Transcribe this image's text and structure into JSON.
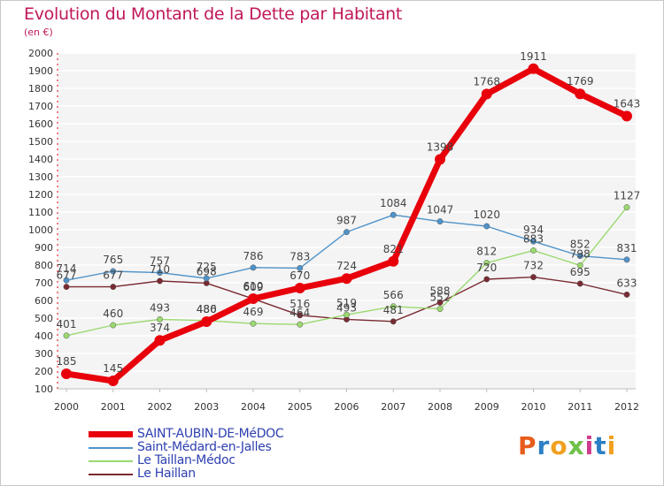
{
  "chart_data": {
    "type": "line",
    "title": "Evolution du Montant de la Dette par Habitant",
    "subtitle": "(en €)",
    "x": [
      "2000",
      "2001",
      "2002",
      "2003",
      "2004",
      "2005",
      "2006",
      "2007",
      "2008",
      "2009",
      "2010",
      "2011",
      "2012"
    ],
    "ylim": [
      100,
      2000
    ],
    "yticks": [
      100,
      200,
      300,
      400,
      500,
      600,
      700,
      800,
      900,
      1000,
      1100,
      1200,
      1300,
      1400,
      1500,
      1600,
      1700,
      1800,
      1900,
      2000
    ],
    "grid": "horizontal",
    "legend_placement": "bottom-left",
    "series": [
      {
        "name": "SAINT-AUBIN-DE-MéDOC",
        "color": "#e8000b",
        "values": [
          185,
          145,
          374,
          480,
          610,
          670,
          724,
          821,
          1398,
          1768,
          1911,
          1769,
          1643
        ]
      },
      {
        "name": "Saint-Médard-en-Jalles",
        "color": "#4f93c9",
        "values": [
          714,
          765,
          757,
          725,
          786,
          783,
          987,
          1084,
          1047,
          1020,
          934,
          852,
          831
        ]
      },
      {
        "name": "Le Taillan-Médoc",
        "color": "#9bd970",
        "values": [
          401,
          460,
          493,
          486,
          469,
          464,
          519,
          566,
          552,
          812,
          883,
          798,
          1127
        ]
      },
      {
        "name": "Le Haillan",
        "color": "#7a2a32",
        "values": [
          677,
          677,
          710,
          698,
          609,
          516,
          493,
          481,
          588,
          720,
          732,
          695,
          633
        ]
      }
    ]
  },
  "logo": {
    "letters": [
      "P",
      "r",
      "o",
      "x",
      "i",
      "t",
      "i"
    ],
    "colors": [
      "#e85d1c",
      "#2b7fc4",
      "#f0a020",
      "#6fc048",
      "#d03a8c",
      "#2b7fc4",
      "#f0a020"
    ]
  }
}
